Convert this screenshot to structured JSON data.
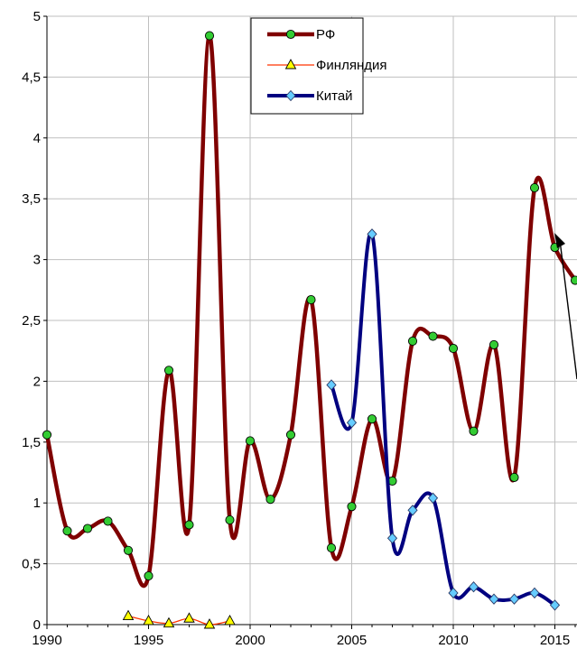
{
  "chart_data": {
    "type": "line",
    "title": "",
    "xlabel": "",
    "ylabel": "",
    "xlim": [
      1990,
      2016
    ],
    "ylim": [
      0,
      5
    ],
    "grid": true,
    "legend_position": "top-center",
    "x_ticks": [
      "1990",
      "1995",
      "2000",
      "2005",
      "2010",
      "2015"
    ],
    "y_ticks": [
      "0",
      "0,5",
      "1",
      "1,5",
      "2",
      "2,5",
      "3",
      "3,5",
      "4",
      "4,5",
      "5"
    ],
    "series": [
      {
        "name": "РФ",
        "color": "#7f0000",
        "marker": "circle",
        "marker_color": "#33cc33",
        "x": [
          1990,
          1991,
          1992,
          1993,
          1994,
          1995,
          1996,
          1997,
          1998,
          1999,
          2000,
          2001,
          2002,
          2003,
          2004,
          2005,
          2006,
          2007,
          2008,
          2009,
          2010,
          2011,
          2012,
          2013,
          2014,
          2015,
          2016
        ],
        "y": [
          1.56,
          0.77,
          0.79,
          0.85,
          0.61,
          0.4,
          2.09,
          0.82,
          4.84,
          0.86,
          1.51,
          1.03,
          1.56,
          2.67,
          0.63,
          0.97,
          1.69,
          1.18,
          2.33,
          2.37,
          2.27,
          1.59,
          2.3,
          1.21,
          3.59,
          3.1,
          2.83
        ]
      },
      {
        "name": "Финляндия",
        "color": "#ff3300",
        "marker": "triangle",
        "marker_color": "#ffff00",
        "x": [
          1994,
          1995,
          1996,
          1997,
          1998,
          1999
        ],
        "y": [
          0.07,
          0.03,
          0.01,
          0.05,
          0.0,
          0.03
        ]
      },
      {
        "name": "Китай",
        "color": "#000080",
        "marker": "diamond",
        "marker_color": "#66ccff",
        "x": [
          2004,
          2005,
          2006,
          2007,
          2008,
          2009,
          2010,
          2011,
          2012,
          2013,
          2014,
          2015
        ],
        "y": [
          1.97,
          1.66,
          3.21,
          0.71,
          0.94,
          1.04,
          0.26,
          0.31,
          0.21,
          0.21,
          0.26,
          0.16
        ]
      }
    ]
  }
}
